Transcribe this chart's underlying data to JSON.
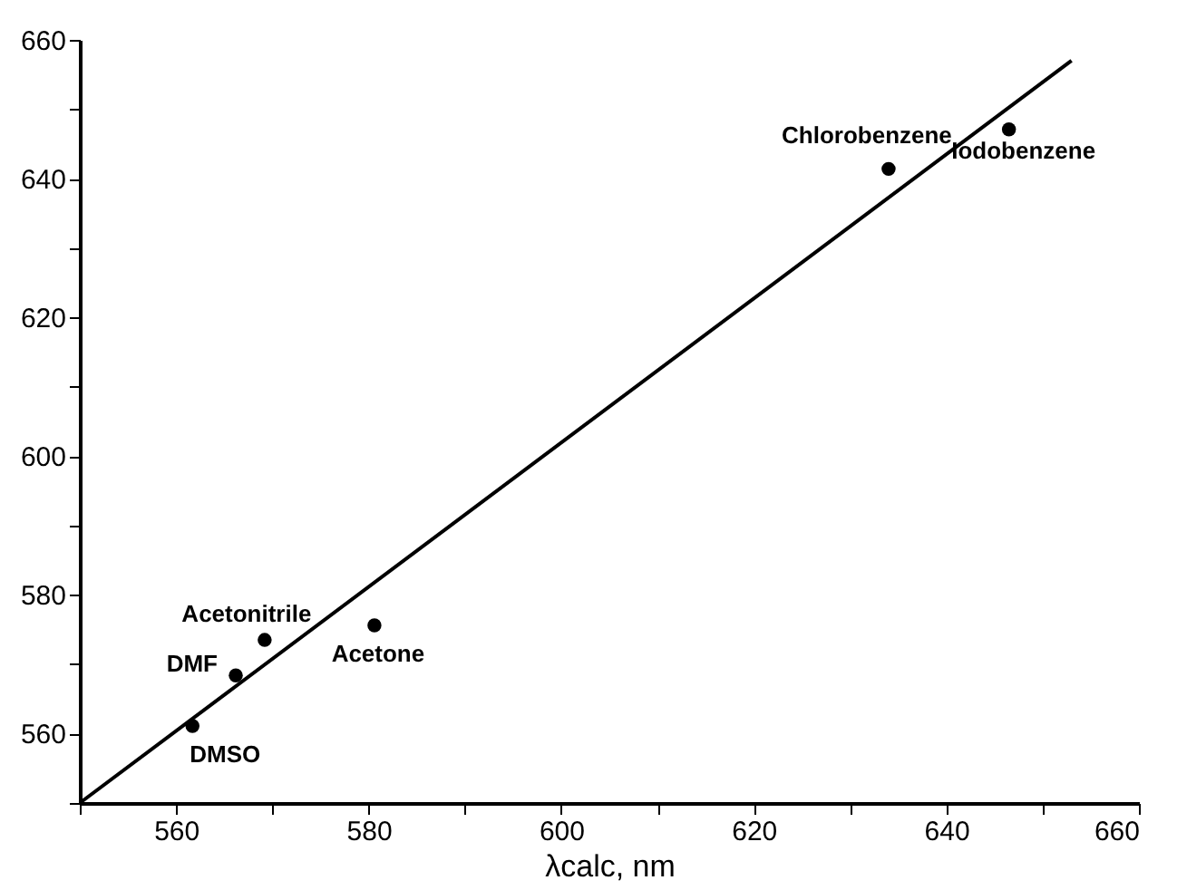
{
  "chart_data": {
    "type": "scatter",
    "xlabel": "λcalc, nm",
    "series": [
      {
        "color": "#000000",
        "marker": "circle",
        "x": [
          561.7,
          566.2,
          569.2,
          580.6,
          634,
          646.5
        ],
        "values": [
          561.1,
          568.4,
          573.5,
          575.6,
          641.4,
          647.1
        ]
      },
      {
        "type": "line",
        "color": "#000000",
        "marker": "none",
        "line_style": "solid",
        "x": [
          550,
          653
        ],
        "values": [
          550,
          657
        ]
      }
    ],
    "annotations": [
      {
        "text": "DMSO",
        "x": 561.7,
        "y": 561.1
      },
      {
        "text": "DMF",
        "x": 566.2,
        "y": 568.4
      },
      {
        "text": "Acetonitrile",
        "x": 569.2,
        "y": 573.5
      },
      {
        "text": "Acetone",
        "x": 580.6,
        "y": 575.6
      },
      {
        "text": "Chlorobenzene",
        "x": 634,
        "y": 641.4
      },
      {
        "text": "Iodobenzene",
        "x": 646.5,
        "y": 647.1
      }
    ],
    "xlim": [
      550,
      660
    ],
    "ylim": [
      550,
      660
    ],
    "xticks": [
      {
        "value": 550,
        "label": null
      },
      560,
      {
        "value": 570,
        "label": null
      },
      580,
      {
        "value": 590,
        "label": null
      },
      600,
      {
        "value": 610,
        "label": null
      },
      620,
      {
        "value": 630,
        "label": null
      },
      640,
      {
        "value": 650,
        "label": null
      },
      660
    ],
    "yticks": [
      {
        "value": 550,
        "label": null
      },
      560,
      {
        "value": 570,
        "label": null
      },
      580,
      {
        "value": 590,
        "label": null
      },
      600,
      {
        "value": 610,
        "label": null
      },
      620,
      {
        "value": 630,
        "label": null
      },
      640,
      {
        "value": 650,
        "label": null
      },
      660
    ],
    "grid": false
  }
}
